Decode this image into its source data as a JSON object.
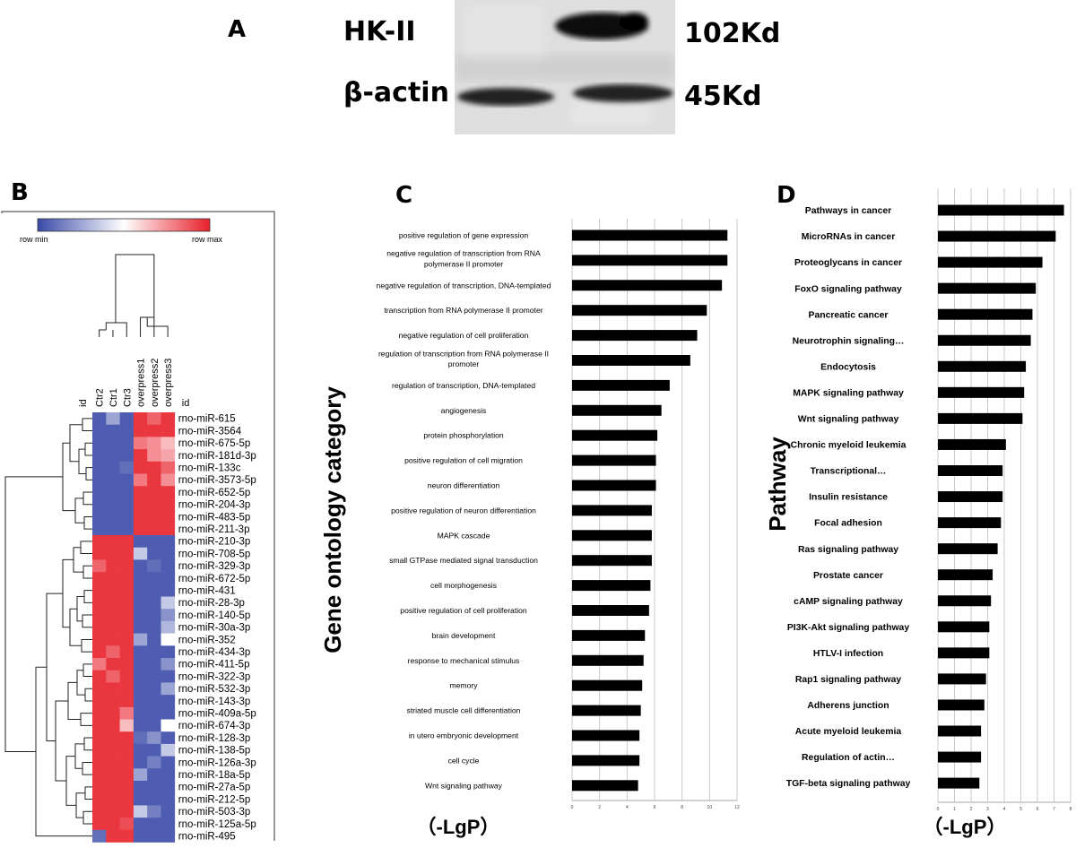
{
  "panels": {
    "a": "A",
    "b": "B",
    "c": "C",
    "d": "D"
  },
  "blot": {
    "rows": [
      {
        "protein": "HK-II",
        "size": "102Kd"
      },
      {
        "protein": "β-actin",
        "size": "45Kd"
      }
    ]
  },
  "heatmap": {
    "scale": {
      "min_label": "row min",
      "max_label": "row max",
      "min_color": "#3a4aa8",
      "mid_color": "#ffffff",
      "max_color": "#e8202a"
    },
    "col_id_label": "id",
    "row_id_label": "id",
    "columns": [
      "Ctr2",
      "Ctr1",
      "Ctr3",
      "overpress1",
      "overpress2",
      "overpress3"
    ],
    "rows": [
      "rno-miR-615",
      "rno-miR-3564",
      "rno-miR-675-5p",
      "rno-miR-181d-3p",
      "rno-miR-133c",
      "rno-miR-3573-5p",
      "rno-miR-652-5p",
      "rno-miR-204-3p",
      "rno-miR-483-5p",
      "rno-miR-211-3p",
      "rno-miR-210-3p",
      "rno-miR-708-5p",
      "rno-miR-329-3p",
      "rno-miR-672-5p",
      "rno-miR-431",
      "rno-miR-28-3p",
      "rno-miR-140-5p",
      "rno-miR-30a-3p",
      "rno-miR-352",
      "rno-miR-434-3p",
      "rno-miR-411-5p",
      "rno-miR-322-3p",
      "rno-miR-532-3p",
      "rno-miR-143-3p",
      "rno-miR-409a-5p",
      "rno-miR-674-3p",
      "rno-miR-128-3p",
      "rno-miR-138-5p",
      "rno-miR-126a-3p",
      "rno-miR-18a-5p",
      "rno-miR-27a-5p",
      "rno-miR-212-5p",
      "rno-miR-503-3p",
      "rno-miR-125a-5p",
      "rno-miR-495"
    ],
    "values": [
      [
        -0.9,
        -0.5,
        -0.9,
        0.9,
        0.7,
        0.9
      ],
      [
        -0.9,
        -0.9,
        -0.9,
        0.9,
        0.9,
        0.9
      ],
      [
        -0.9,
        -0.9,
        -0.9,
        0.6,
        0.5,
        0.3
      ],
      [
        -0.9,
        -0.9,
        -0.9,
        0.9,
        0.5,
        0.4
      ],
      [
        -0.9,
        -0.9,
        -0.8,
        0.9,
        0.9,
        0.7
      ],
      [
        -0.9,
        -0.9,
        -0.9,
        0.6,
        0.9,
        0.5
      ],
      [
        -0.9,
        -0.9,
        -0.9,
        0.9,
        0.9,
        0.9
      ],
      [
        -0.9,
        -0.9,
        -0.9,
        0.9,
        0.9,
        0.9
      ],
      [
        -0.9,
        -0.9,
        -0.9,
        0.9,
        0.9,
        0.9
      ],
      [
        -0.9,
        -0.9,
        -0.9,
        0.9,
        0.9,
        0.9
      ],
      [
        0.9,
        0.9,
        0.9,
        -0.9,
        -0.9,
        -0.9
      ],
      [
        0.9,
        0.9,
        0.9,
        -0.3,
        -0.9,
        -0.9
      ],
      [
        0.7,
        0.9,
        0.9,
        -0.9,
        -0.8,
        -0.9
      ],
      [
        0.9,
        0.9,
        0.9,
        -0.9,
        -0.9,
        -0.9
      ],
      [
        0.9,
        0.9,
        0.9,
        -0.9,
        -0.9,
        -0.9
      ],
      [
        0.9,
        0.9,
        0.9,
        -0.9,
        -0.9,
        -0.3
      ],
      [
        0.9,
        0.9,
        0.9,
        -0.9,
        -0.9,
        -0.6
      ],
      [
        0.9,
        0.9,
        0.9,
        -0.9,
        -0.9,
        -0.4
      ],
      [
        0.9,
        0.9,
        0.9,
        -0.5,
        -0.9,
        0.0
      ],
      [
        0.9,
        0.7,
        0.9,
        -0.9,
        -0.9,
        -0.9
      ],
      [
        0.6,
        0.9,
        0.9,
        -0.9,
        -0.9,
        -0.6
      ],
      [
        0.9,
        0.7,
        0.9,
        -0.9,
        -0.9,
        -0.9
      ],
      [
        0.9,
        0.9,
        0.9,
        -0.9,
        -0.9,
        -0.5
      ],
      [
        0.9,
        0.9,
        0.9,
        -0.9,
        -0.9,
        -0.9
      ],
      [
        0.9,
        0.9,
        0.6,
        -0.9,
        -0.9,
        -0.9
      ],
      [
        0.9,
        0.9,
        0.3,
        -0.9,
        -0.9,
        0.0
      ],
      [
        0.9,
        0.9,
        0.9,
        -0.8,
        -0.6,
        -0.9
      ],
      [
        0.9,
        0.9,
        0.9,
        -0.9,
        -0.9,
        -0.3
      ],
      [
        0.9,
        0.9,
        0.9,
        -0.9,
        -0.7,
        -0.9
      ],
      [
        0.9,
        0.9,
        0.9,
        -0.5,
        -0.9,
        -0.9
      ],
      [
        0.9,
        0.9,
        0.9,
        -0.9,
        -0.9,
        -0.9
      ],
      [
        0.9,
        0.9,
        0.9,
        -0.9,
        -0.9,
        -0.9
      ],
      [
        0.9,
        0.9,
        0.9,
        -0.3,
        -0.7,
        -0.9
      ],
      [
        0.9,
        0.9,
        0.8,
        -0.9,
        -0.9,
        -0.9
      ],
      [
        -0.8,
        0.9,
        0.9,
        -0.9,
        -0.9,
        -0.9
      ]
    ]
  },
  "chart_data": [
    {
      "type": "bar",
      "orientation": "horizontal",
      "ylabel": "Gene ontology category",
      "xlabel": "（-LgP）",
      "xlim": [
        0,
        12
      ],
      "xticks": [
        "0",
        "2",
        "4",
        "6",
        "8",
        "10",
        "12"
      ],
      "categories": [
        "positive regulation of gene expression",
        "negative regulation of transcription from RNA polymerase II promoter",
        "negative regulation of transcription, DNA-templated",
        "transcription from RNA polymerase II promoter",
        "negative regulation of cell proliferation",
        "regulation of transcription from RNA polymerase II promoter",
        "regulation of transcription, DNA-templated",
        "angiogenesis",
        "protein phosphorylation",
        "positive regulation of cell migration",
        "neuron differentiation",
        "positive regulation of neuron differentiation",
        "MAPK cascade",
        "small GTPase mediated signal transduction",
        "cell morphogenesis",
        "positive regulation of cell proliferation",
        "brain development",
        "response to mechanical stimulus",
        "memory",
        "striated muscle cell differentiation",
        "in utero embryonic development",
        "cell cycle",
        "Wnt signaling pathway"
      ],
      "label_lines": [
        [
          "positive regulation of gene expression"
        ],
        [
          "negative regulation of transcription from RNA",
          "polymerase II promoter"
        ],
        [
          "negative regulation of transcription, DNA-templated"
        ],
        [
          "transcription from RNA polymerase II promoter"
        ],
        [
          "negative regulation of cell proliferation"
        ],
        [
          "regulation of transcription from RNA polymerase II",
          "promoter"
        ],
        [
          "regulation of transcription, DNA-templated"
        ],
        [
          "angiogenesis"
        ],
        [
          "protein phosphorylation"
        ],
        [
          "positive regulation of cell migration"
        ],
        [
          "neuron differentiation"
        ],
        [
          "positive regulation of neuron differentiation"
        ],
        [
          "MAPK cascade"
        ],
        [
          "small GTPase mediated signal transduction"
        ],
        [
          "cell morphogenesis"
        ],
        [
          "positive regulation of cell proliferation"
        ],
        [
          "brain development"
        ],
        [
          "response to mechanical stimulus"
        ],
        [
          "memory"
        ],
        [
          "striated muscle cell differentiation"
        ],
        [
          "in utero embryonic development"
        ],
        [
          "cell cycle"
        ],
        [
          "Wnt signaling pathway"
        ]
      ],
      "values": [
        11.3,
        11.3,
        10.9,
        9.8,
        9.1,
        8.6,
        7.1,
        6.5,
        6.2,
        6.1,
        6.1,
        5.8,
        5.8,
        5.8,
        5.7,
        5.6,
        5.3,
        5.2,
        5.1,
        5.0,
        4.9,
        4.9,
        4.8
      ],
      "grid": true,
      "bar_color": "#000000"
    },
    {
      "type": "bar",
      "orientation": "horizontal",
      "ylabel": "Pathway",
      "xlabel": "（-LgP）",
      "xlim": [
        0,
        8
      ],
      "xticks": [
        "0",
        "1",
        "2",
        "3",
        "4",
        "5",
        "6",
        "7",
        "8"
      ],
      "categories": [
        "Pathways in cancer",
        "MicroRNAs in cancer",
        "Proteoglycans in cancer",
        "FoxO signaling pathway",
        "Pancreatic cancer",
        "Neurotrophin signaling…",
        "Endocytosis",
        "MAPK signaling pathway",
        "Wnt signaling pathway",
        "Chronic myeloid leukemia",
        "Transcriptional…",
        "Insulin resistance",
        "Focal adhesion",
        "Ras signaling pathway",
        "Prostate cancer",
        "cAMP signaling pathway",
        "PI3K-Akt signaling pathway",
        "HTLV-I infection",
        "Rap1 signaling pathway",
        "Adherens junction",
        "Acute myeloid leukemia",
        "Regulation of actin…",
        "TGF-beta signaling pathway"
      ],
      "values": [
        7.6,
        7.1,
        6.3,
        5.9,
        5.7,
        5.6,
        5.3,
        5.2,
        5.1,
        4.1,
        3.9,
        3.9,
        3.8,
        3.6,
        3.3,
        3.2,
        3.1,
        3.1,
        2.9,
        2.8,
        2.6,
        2.6,
        2.5
      ],
      "grid": true,
      "bar_color": "#000000"
    }
  ]
}
